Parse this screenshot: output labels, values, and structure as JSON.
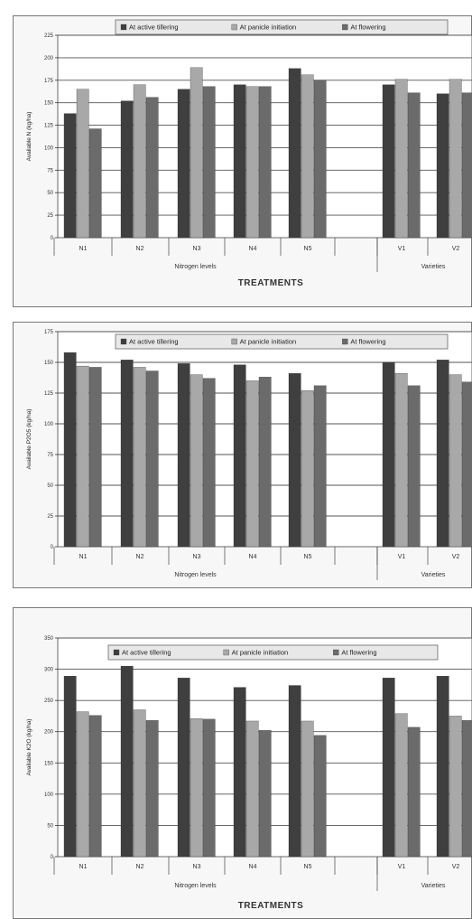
{
  "chart_data": [
    {
      "type": "bar",
      "ylabel": "Available N (kg/ha)",
      "xlabel": "TREATMENTS",
      "ylim": [
        0,
        225
      ],
      "yticks": [
        0,
        25,
        50,
        75,
        100,
        125,
        150,
        175,
        200,
        225
      ],
      "categories": [
        "N1",
        "N2",
        "N3",
        "N4",
        "N5",
        "V1",
        "V2"
      ],
      "category_groups": [
        {
          "label": "Nitrogen levels",
          "categories": [
            "N1",
            "N2",
            "N3",
            "N4",
            "N5"
          ]
        },
        {
          "label": "Varieties",
          "categories": [
            "V1",
            "V2"
          ]
        }
      ],
      "series": [
        {
          "name": "At active tillering",
          "values": [
            138,
            152,
            165,
            170,
            188,
            170,
            160
          ]
        },
        {
          "name": "At panicle initiation",
          "values": [
            165,
            170,
            189,
            168,
            181,
            176,
            176
          ]
        },
        {
          "name": "At flowering",
          "values": [
            121,
            156,
            168,
            168,
            175,
            161,
            161
          ]
        }
      ],
      "legend_position": "top",
      "grid": true
    },
    {
      "type": "bar",
      "ylabel": "Available P2O5 (kg/ha)",
      "xlabel": "TREATMENTS",
      "ylim": [
        0,
        175
      ],
      "yticks": [
        0,
        25,
        50,
        75,
        100,
        125,
        150,
        175
      ],
      "categories": [
        "N1",
        "N2",
        "N3",
        "N4",
        "N5",
        "V1",
        "V2"
      ],
      "category_groups": [
        {
          "label": "Nitrogen levels",
          "categories": [
            "N1",
            "N2",
            "N3",
            "N4",
            "N5"
          ]
        },
        {
          "label": "Varieties",
          "categories": [
            "V1",
            "V2"
          ]
        }
      ],
      "series": [
        {
          "name": "At active tillering",
          "values": [
            158,
            152,
            149,
            148,
            141,
            150,
            152
          ]
        },
        {
          "name": "At panicle initiation",
          "values": [
            147,
            146,
            140,
            135,
            127,
            141,
            140
          ]
        },
        {
          "name": "At flowering",
          "values": [
            146,
            143,
            137,
            138,
            131,
            131,
            134
          ]
        }
      ],
      "legend_position": "top",
      "grid": true
    },
    {
      "type": "bar",
      "ylabel": "Available K2O (kg/ha)",
      "xlabel": "TREATMENTS",
      "ylim": [
        0,
        350
      ],
      "yticks": [
        0,
        50,
        100,
        150,
        200,
        250,
        300,
        350
      ],
      "categories": [
        "N1",
        "N2",
        "N3",
        "N4",
        "N5",
        "V1",
        "V2"
      ],
      "category_groups": [
        {
          "label": "Nitrogen levels",
          "categories": [
            "N1",
            "N2",
            "N3",
            "N4",
            "N5"
          ]
        },
        {
          "label": "Varieties",
          "categories": [
            "V1",
            "V2"
          ]
        }
      ],
      "series": [
        {
          "name": "At active tillering",
          "values": [
            289,
            305,
            286,
            271,
            274,
            286,
            289
          ]
        },
        {
          "name": "At panicle initiation",
          "values": [
            232,
            235,
            221,
            217,
            217,
            229,
            225
          ]
        },
        {
          "name": "At flowering",
          "values": [
            226,
            218,
            220,
            202,
            194,
            207,
            218
          ]
        }
      ],
      "legend_position": "top",
      "grid": true
    }
  ],
  "colors": {
    "series": [
      "#3f3f3f",
      "#a8a8a8",
      "#6b6b6b"
    ],
    "grid": "#555555",
    "axis": "#333333",
    "legend_background": "#e8e8e8"
  }
}
